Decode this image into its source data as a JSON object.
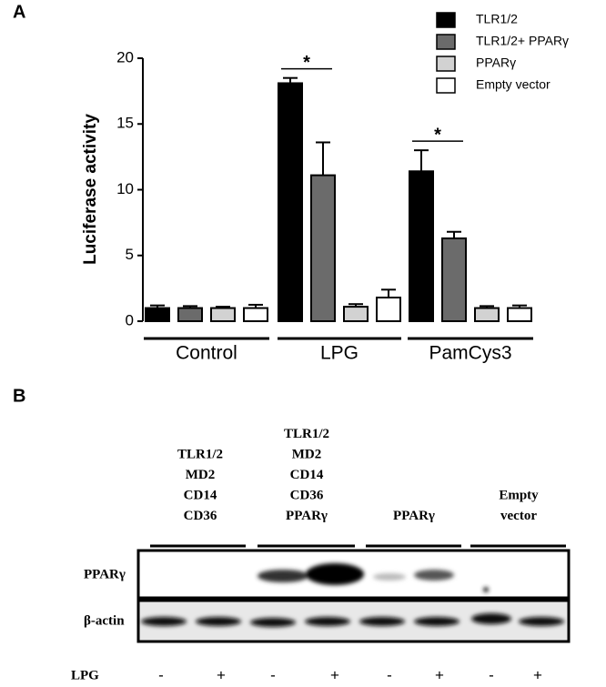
{
  "panel_labels": [
    "A",
    "B"
  ],
  "chart_data": {
    "type": "bar",
    "y_label": "Luciferase activity",
    "categories": [
      "Control",
      "LPG",
      "PamCys3"
    ],
    "series": [
      {
        "name": "TLR1/2",
        "color": "#000000",
        "values": [
          1.0,
          18.1,
          11.4
        ],
        "errors": [
          0.2,
          0.4,
          1.6
        ]
      },
      {
        "name": "TLR1/2+ PPARγ",
        "color": "#6b6b6b",
        "values": [
          1.0,
          11.1,
          6.3
        ],
        "errors": [
          0.15,
          2.5,
          0.5
        ]
      },
      {
        "name": "PPARγ",
        "color": "#d2d2d2",
        "values": [
          1.0,
          1.1,
          1.0
        ],
        "errors": [
          0.1,
          0.2,
          0.15
        ]
      },
      {
        "name": "Empty vector",
        "color": "#ffffff",
        "values": [
          1.0,
          1.8,
          1.0
        ],
        "errors": [
          0.25,
          0.6,
          0.2
        ]
      }
    ],
    "annotations": [
      "*",
      "*"
    ],
    "ylim": [
      0,
      20
    ],
    "yticks": [
      0,
      5,
      10,
      15,
      20
    ]
  },
  "blot": {
    "groups": [
      [
        "TLR1/2",
        "MD2",
        "CD14",
        "CD36"
      ],
      [
        "TLR1/2",
        "MD2",
        "CD14",
        "CD36",
        "PPARγ"
      ],
      [
        "PPARγ"
      ],
      [
        "Empty",
        "vector"
      ]
    ],
    "rows": [
      "PPARγ",
      "β-actin"
    ],
    "treatment": {
      "label": "LPG",
      "lanes": [
        "-",
        "+",
        "-",
        "+",
        "-",
        "+",
        "-",
        "+"
      ]
    }
  }
}
